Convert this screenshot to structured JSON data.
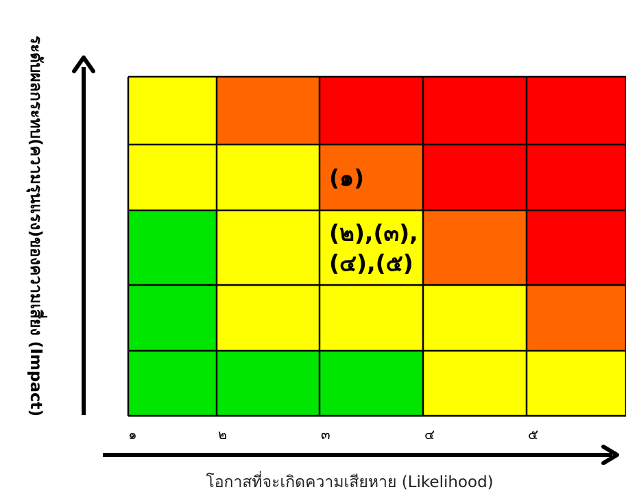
{
  "chart_data": {
    "type": "heatmap",
    "xlabel": "โอกาสที่จะเกิดความเสียหาย (Likelihood)",
    "ylabel": "ระดับผลกระทบ(ความรุนแรง)ของความเสี่ยง (Impact)",
    "x_ticks": [
      "๑",
      "๒",
      "๓",
      "๔",
      "๕"
    ],
    "levels": {
      "green": "#00e600",
      "yellow": "#ffff00",
      "orange": "#ff6600",
      "red": "#ff0000"
    },
    "rows_top_to_bottom": [
      [
        "yellow",
        "orange",
        "red",
        "red",
        "red"
      ],
      [
        "yellow",
        "yellow",
        "orange",
        "red",
        "red"
      ],
      [
        "green",
        "yellow",
        "yellow",
        "orange",
        "red"
      ],
      [
        "green",
        "yellow",
        "yellow",
        "yellow",
        "orange"
      ],
      [
        "green",
        "green",
        "green",
        "yellow",
        "yellow"
      ]
    ],
    "annotations": [
      {
        "row": 1,
        "col": 2,
        "lines": [
          "(๑)"
        ]
      },
      {
        "row": 2,
        "col": 2,
        "lines": [
          "(๒),(๓),",
          "(๔),(๕)"
        ]
      }
    ]
  }
}
